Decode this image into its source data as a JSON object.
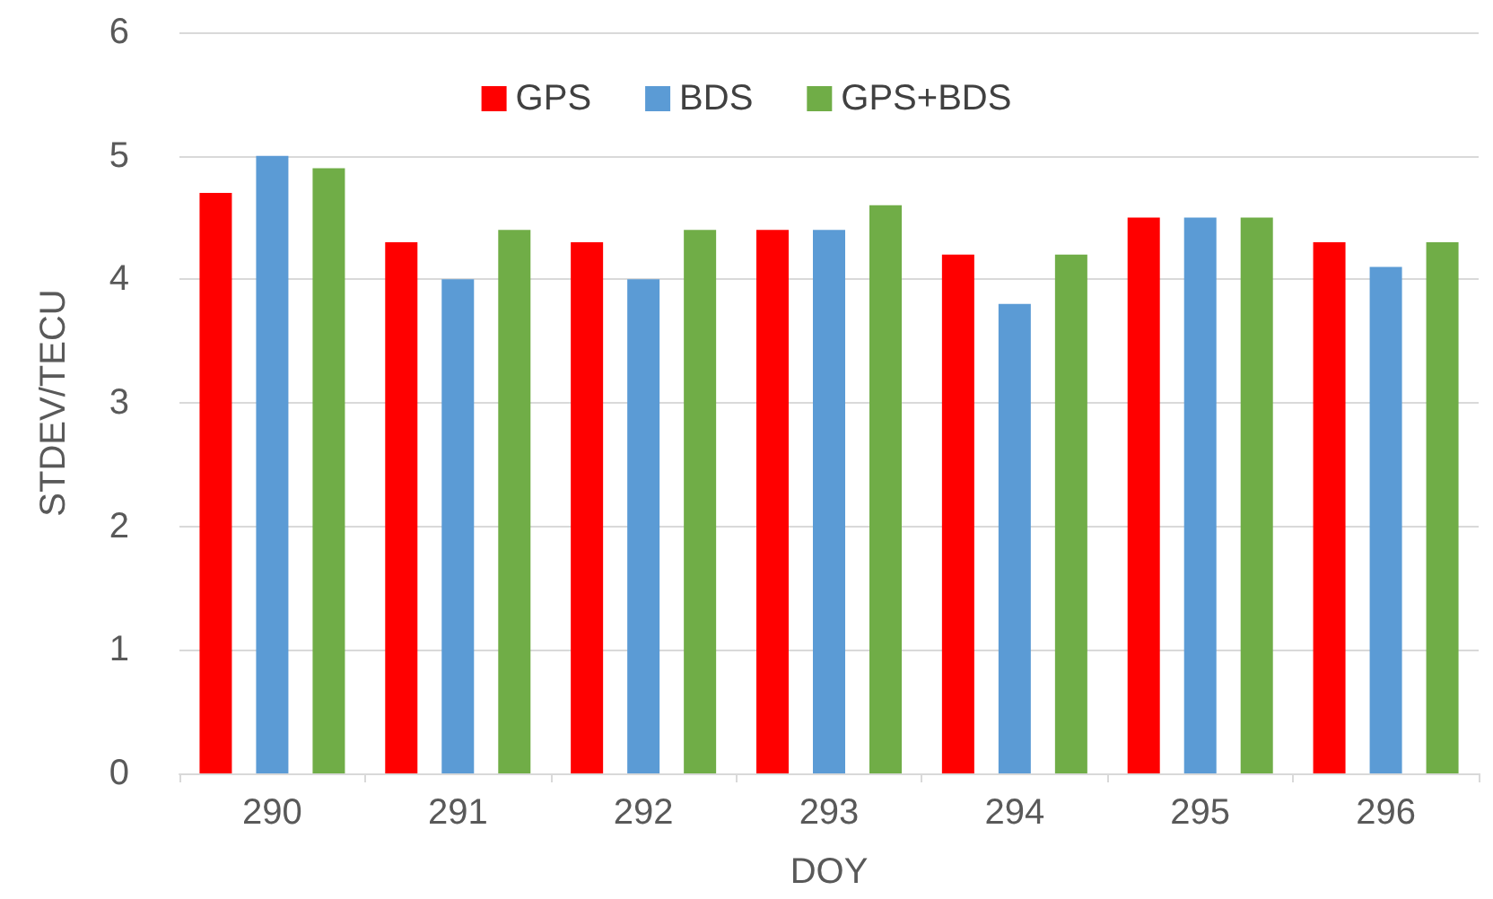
{
  "chart_data": {
    "type": "bar",
    "xlabel": "DOY",
    "ylabel": "STDEV/TECU",
    "categories": [
      "290",
      "291",
      "292",
      "293",
      "294",
      "295",
      "296"
    ],
    "series": [
      {
        "name": "GPS",
        "color": "#ff0000",
        "values": [
          4.7,
          4.3,
          4.3,
          4.4,
          4.2,
          4.5,
          4.3
        ]
      },
      {
        "name": "BDS",
        "color": "#5b9bd5",
        "values": [
          5.0,
          4.0,
          4.0,
          4.4,
          3.8,
          4.5,
          4.1
        ]
      },
      {
        "name": "GPS+BDS",
        "color": "#70ad47",
        "values": [
          4.9,
          4.4,
          4.4,
          4.6,
          4.2,
          4.5,
          4.3
        ]
      }
    ],
    "ylim": [
      0,
      6
    ],
    "yticks": [
      0,
      1,
      2,
      3,
      4,
      5,
      6
    ],
    "grid": "y",
    "legend": "top"
  }
}
